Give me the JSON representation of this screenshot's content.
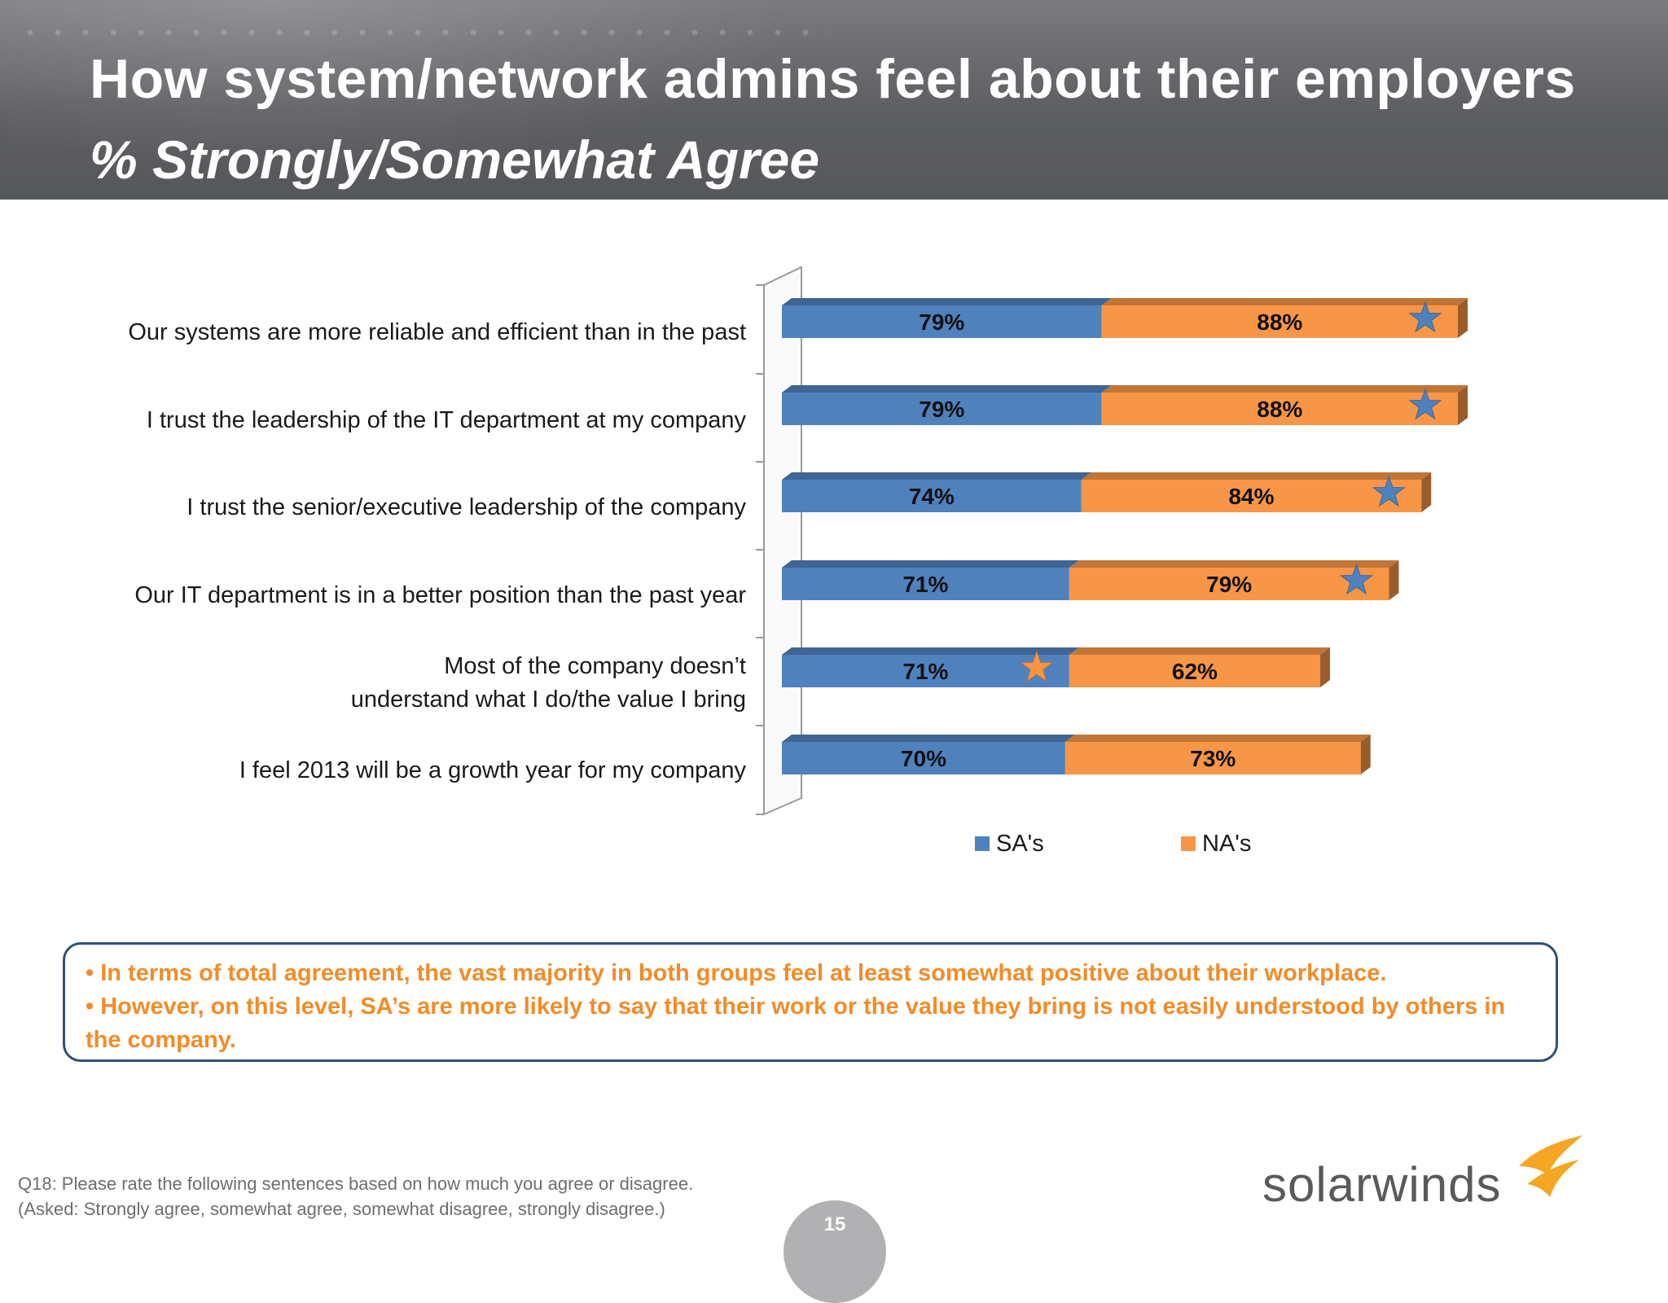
{
  "title": "How system/network admins feel about their employers",
  "subtitle": "% Strongly/Somewhat Agree",
  "chart_data": {
    "type": "bar",
    "orientation": "horizontal",
    "stacked": true,
    "categories": [
      "Our systems are more reliable and efficient than in the past",
      "I trust the leadership of the IT department at my company",
      "I trust the senior/executive leadership of the company",
      "Our IT department is in a better position than the past year",
      "Most of the company doesn’t understand what I do/the value I bring",
      "I feel 2013 will be a growth year for my company"
    ],
    "series": [
      {
        "name": "SA's",
        "color": "#4f81bd",
        "values": [
          79,
          79,
          74,
          71,
          71,
          70
        ],
        "labels": [
          "79%",
          "79%",
          "74%",
          "71%",
          "71%",
          "70%"
        ]
      },
      {
        "name": "NA's",
        "color": "#f79646",
        "values": [
          88,
          88,
          84,
          79,
          62,
          73
        ],
        "labels": [
          "88%",
          "88%",
          "84%",
          "79%",
          "62%",
          "73%"
        ]
      }
    ],
    "highlight_stars": [
      {
        "category_index": 0,
        "series": "NA's",
        "color": "#4f81bd"
      },
      {
        "category_index": 1,
        "series": "NA's",
        "color": "#4f81bd"
      },
      {
        "category_index": 2,
        "series": "NA's",
        "color": "#4f81bd"
      },
      {
        "category_index": 3,
        "series": "NA's",
        "color": "#4f81bd"
      },
      {
        "category_index": 4,
        "series": "SA's",
        "color": "#f79646"
      }
    ],
    "legend_placement": "bottom",
    "grid": false,
    "style": "3d"
  },
  "callout": {
    "points": [
      "• In terms of total agreement, the vast majority in both groups feel  at least somewhat positive about their workplace.",
      "• However, on this level,  SA’s are more likely to say that their work or the value they bring is not easily understood by others in the company."
    ]
  },
  "footnote": "Q18: Please rate the following sentences based on how much you agree or disagree. (Asked: Strongly agree, somewhat agree, somewhat disagree, strongly disagree.)",
  "logo": {
    "text": "solarwinds",
    "flame_color": "#f5a623"
  },
  "page_number": "15"
}
